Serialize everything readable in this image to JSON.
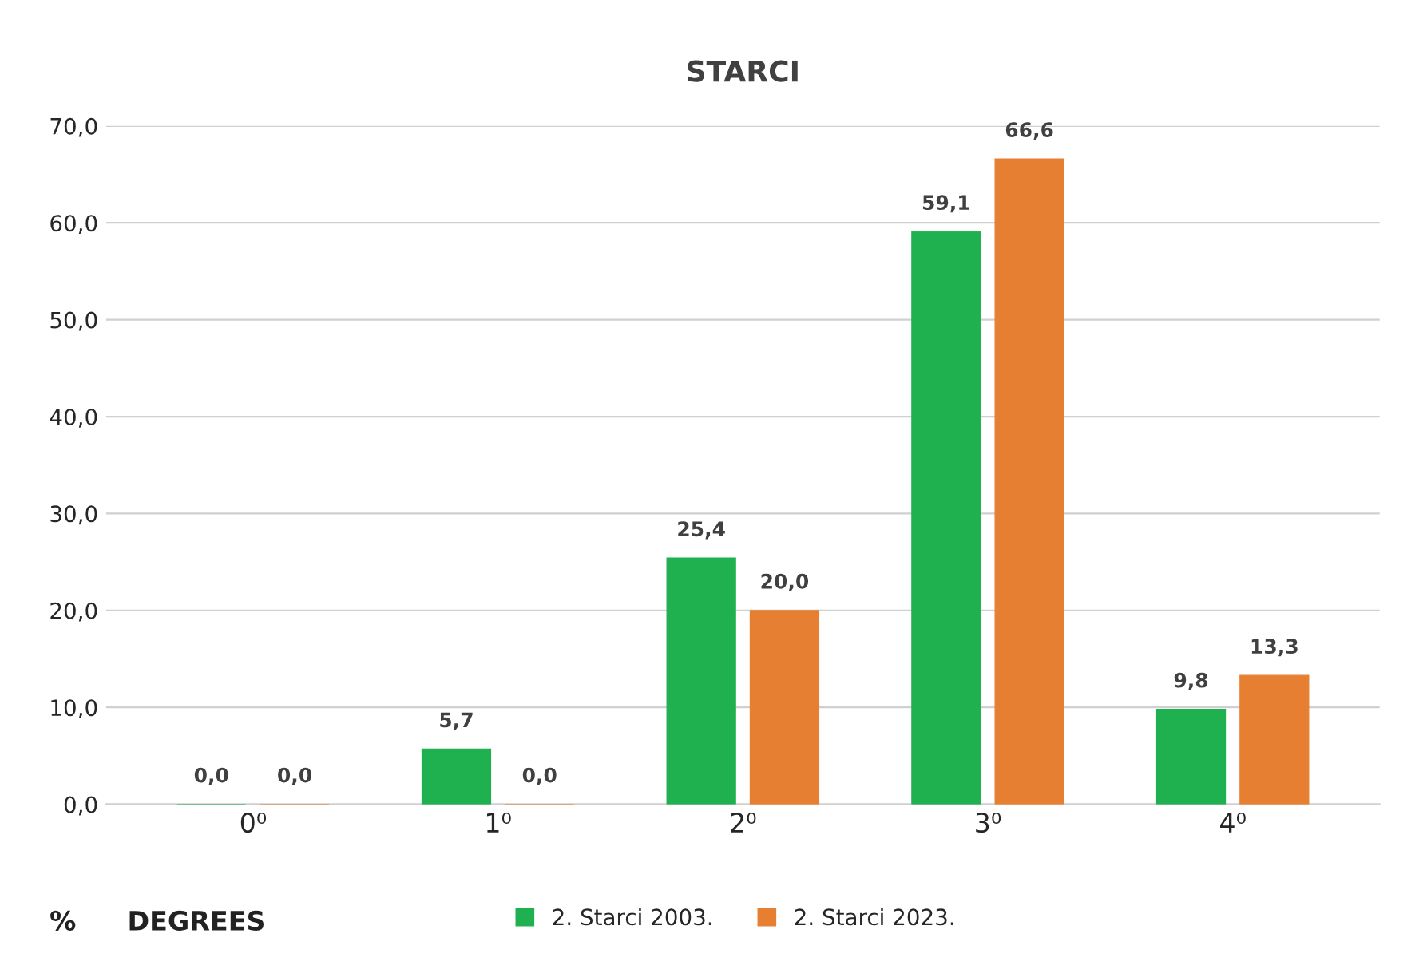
{
  "chart_data": {
    "type": "bar",
    "title": "STARCI",
    "xlabel": "DEGREES",
    "ylabel": "%",
    "categories": [
      "0⁰",
      "1⁰",
      "2⁰",
      "3⁰",
      "4⁰"
    ],
    "series": [
      {
        "name": "2. Starci 2003.",
        "color": "#1fb04f",
        "values": [
          0.0,
          5.7,
          25.4,
          59.1,
          9.8
        ],
        "value_labels": [
          "0,0",
          "5,7",
          "25,4",
          "59,1",
          "9,8"
        ]
      },
      {
        "name": "2. Starci 2023.",
        "color": "#e77f32",
        "values": [
          0.0,
          0.0,
          20.0,
          66.6,
          13.3
        ],
        "value_labels": [
          "0,0",
          "0,0",
          "20,0",
          "66,6",
          "13,3"
        ]
      }
    ],
    "ylim": [
      0,
      70
    ],
    "yticks": [
      {
        "value": 0,
        "label": "0,0"
      },
      {
        "value": 10,
        "label": "10,0"
      },
      {
        "value": 20,
        "label": "20,0"
      },
      {
        "value": 30,
        "label": "30,0"
      },
      {
        "value": 40,
        "label": "40,0"
      },
      {
        "value": 50,
        "label": "50,0"
      },
      {
        "value": 60,
        "label": "60,0"
      },
      {
        "value": 70,
        "label": "70,0"
      }
    ],
    "grid": "y",
    "legend": "bottom"
  }
}
